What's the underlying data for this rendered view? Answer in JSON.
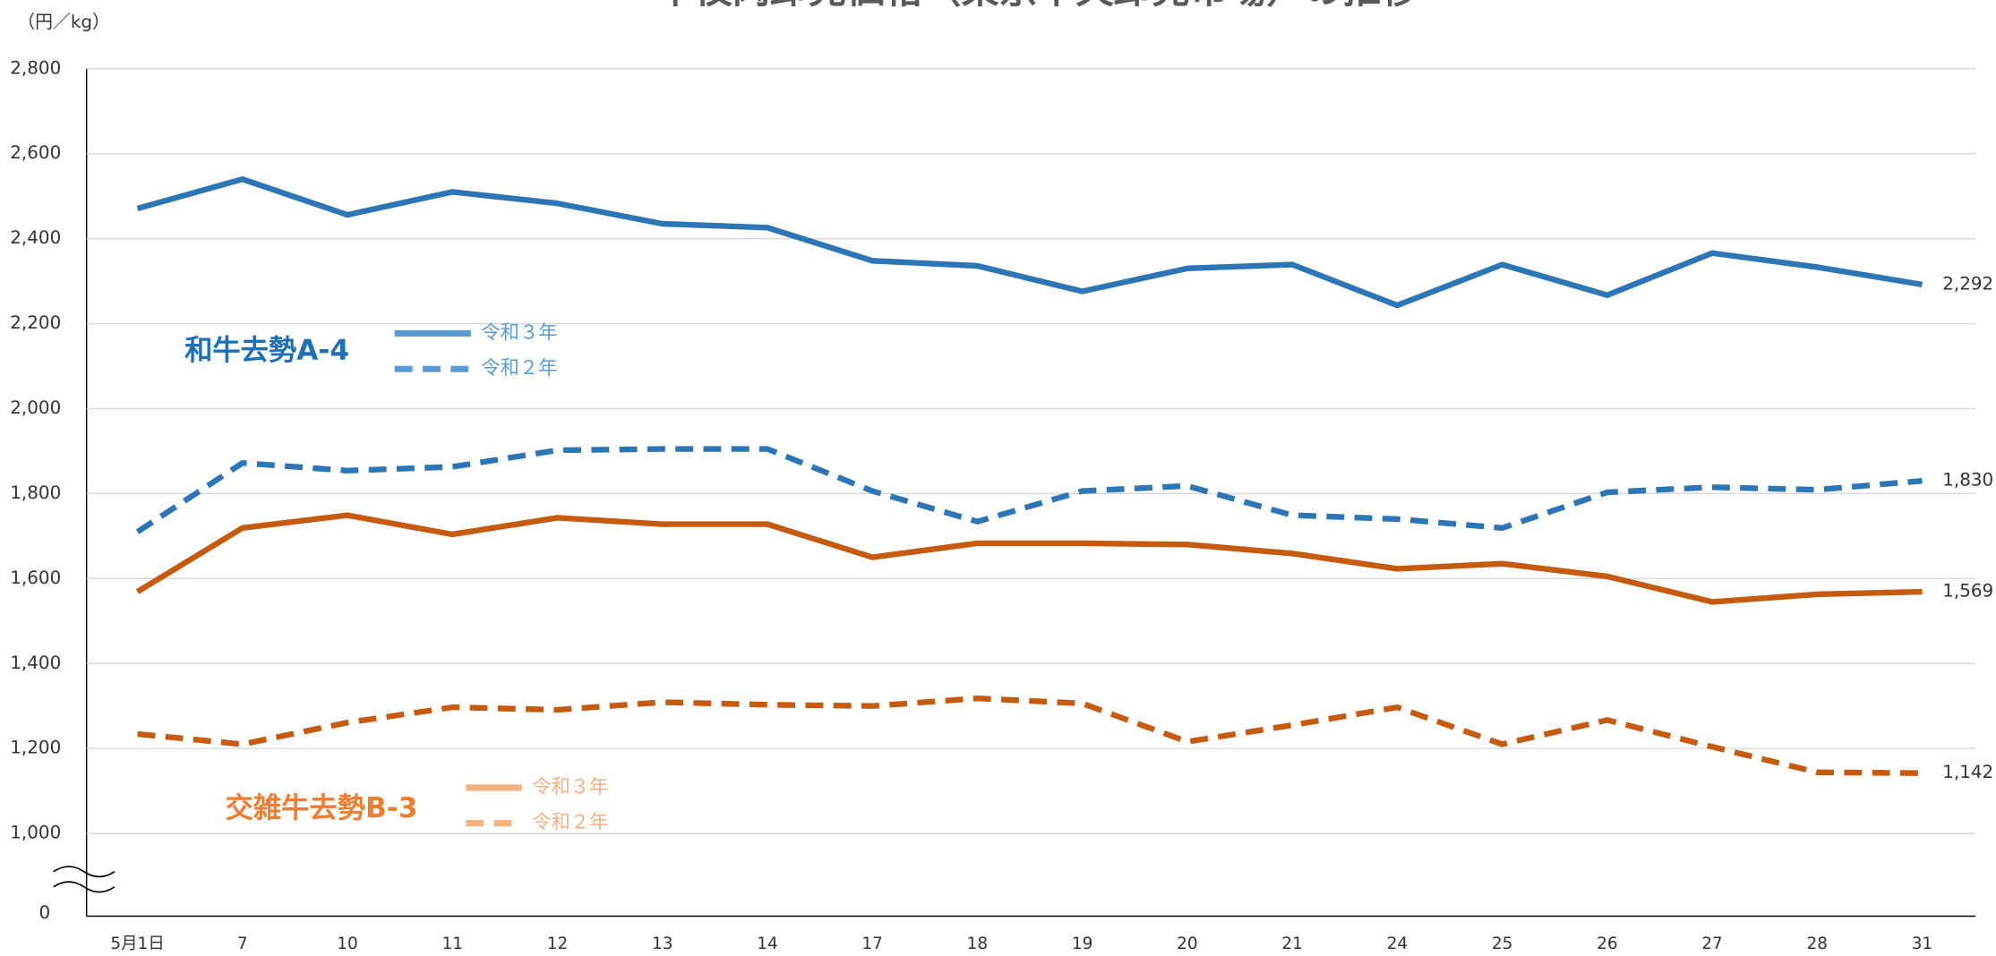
{
  "chart_data": {
    "type": "line",
    "title": "牛枝肉卸売価格（東京中央卸売市場）の推移",
    "y_unit": "（円／kg）",
    "axis_origin_label": "0",
    "categories": [
      "5月1日",
      "7",
      "10",
      "11",
      "12",
      "13",
      "14",
      "17",
      "18",
      "19",
      "20",
      "21",
      "24",
      "25",
      "26",
      "27",
      "28",
      "31"
    ],
    "ylim": [
      1000,
      2800
    ],
    "yticks": [
      {
        "value": 1000,
        "label": "1,000"
      },
      {
        "value": 1200,
        "label": "1,200"
      },
      {
        "value": 1400,
        "label": "1,400"
      },
      {
        "value": 1600,
        "label": "1,600"
      },
      {
        "value": 1800,
        "label": "1,800"
      },
      {
        "value": 2000,
        "label": "2,000"
      },
      {
        "value": 2200,
        "label": "2,200"
      },
      {
        "value": 2400,
        "label": "2,400"
      },
      {
        "value": 2600,
        "label": "2,600"
      },
      {
        "value": 2800,
        "label": "2,800"
      }
    ],
    "grid": true,
    "groups": [
      {
        "label": "和牛去勢A-4",
        "label_color": "#1f6fb5",
        "legend_color": "#5b9bd5",
        "series": [
          {
            "name": "令和３年",
            "color": "#2e75b6",
            "dashed": false,
            "values": [
              2471,
              2540,
              2456,
              2510,
              2483,
              2435,
              2426,
              2348,
              2336,
              2276,
              2330,
              2339,
              2243,
              2339,
              2267,
              2366,
              2333,
              2292
            ],
            "value_labels": [
              null,
              null,
              null,
              null,
              null,
              null,
              null,
              null,
              null,
              null,
              null,
              null,
              null,
              null,
              null,
              null,
              null,
              "2,292"
            ]
          },
          {
            "name": "令和２年",
            "color": "#2e75b6",
            "dashed": true,
            "values": [
              1710,
              1872,
              1854,
              1863,
              1902,
              1905,
              1905,
              1806,
              1734,
              1806,
              1818,
              1749,
              1740,
              1719,
              1803,
              1815,
              1809,
              1830
            ],
            "value_labels": [
              null,
              null,
              null,
              null,
              null,
              null,
              null,
              null,
              null,
              null,
              null,
              null,
              null,
              null,
              null,
              null,
              null,
              "1,830"
            ]
          }
        ]
      },
      {
        "label": "交雑牛去勢B-3",
        "label_color": "#ed7d31",
        "legend_color": "#f4b183",
        "series": [
          {
            "name": "令和３年",
            "color": "#c55a11",
            "dashed": false,
            "values": [
              1569,
              1719,
              1749,
              1704,
              1743,
              1728,
              1728,
              1650,
              1683,
              1683,
              1680,
              1659,
              1623,
              1635,
              1605,
              1545,
              1563,
              1569
            ],
            "value_labels": [
              null,
              null,
              null,
              null,
              null,
              null,
              null,
              null,
              null,
              null,
              null,
              null,
              null,
              null,
              null,
              null,
              null,
              "1,569"
            ]
          },
          {
            "name": "令和２年",
            "color": "#c55a11",
            "dashed": true,
            "values": [
              1234,
              1210,
              1261,
              1297,
              1291,
              1309,
              1303,
              1300,
              1318,
              1306,
              1216,
              1255,
              1297,
              1210,
              1267,
              1204,
              1144,
              1142
            ],
            "value_labels": [
              null,
              null,
              null,
              null,
              null,
              null,
              null,
              null,
              null,
              null,
              null,
              null,
              null,
              null,
              null,
              null,
              null,
              "1,142"
            ]
          }
        ]
      }
    ]
  }
}
